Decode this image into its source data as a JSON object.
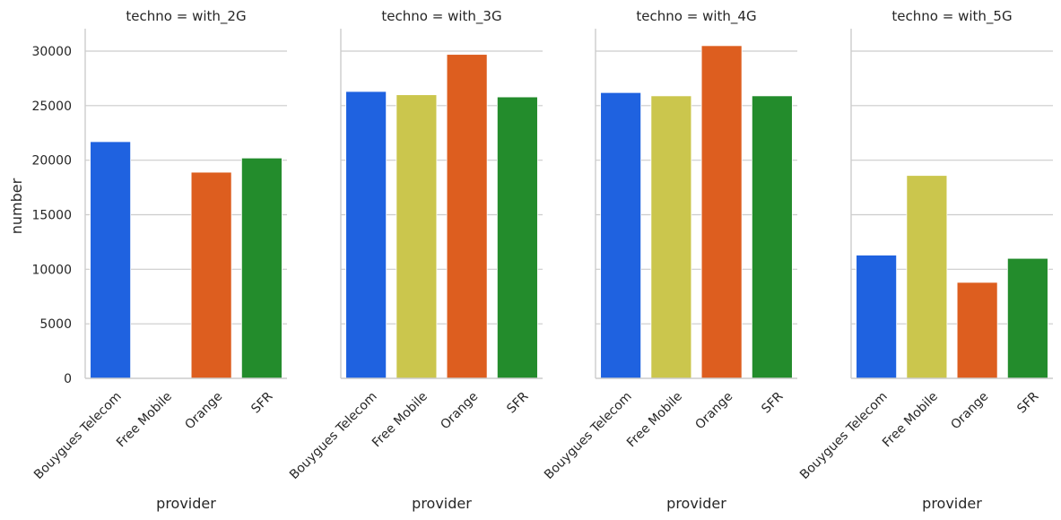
{
  "chart_data": {
    "type": "bar",
    "xlabel": "provider",
    "ylabel": "number",
    "ylim": [
      0,
      32000
    ],
    "yticks": [
      0,
      5000,
      10000,
      15000,
      20000,
      25000,
      30000
    ],
    "grid": "horizontal",
    "categories": [
      "Bouygues Telecom",
      "Free Mobile",
      "Orange",
      "SFR"
    ],
    "colors": [
      "#1f62e0",
      "#cbc64d",
      "#dd5e1f",
      "#238c2c"
    ],
    "panels": [
      {
        "title": "techno = with_2G",
        "values": [
          21700,
          0,
          18900,
          20200
        ]
      },
      {
        "title": "techno = with_3G",
        "values": [
          26300,
          26000,
          29700,
          25800
        ]
      },
      {
        "title": "techno = with_4G",
        "values": [
          26200,
          25900,
          30500,
          25900
        ]
      },
      {
        "title": "techno = with_5G",
        "values": [
          11300,
          18600,
          8800,
          11000
        ]
      }
    ]
  }
}
